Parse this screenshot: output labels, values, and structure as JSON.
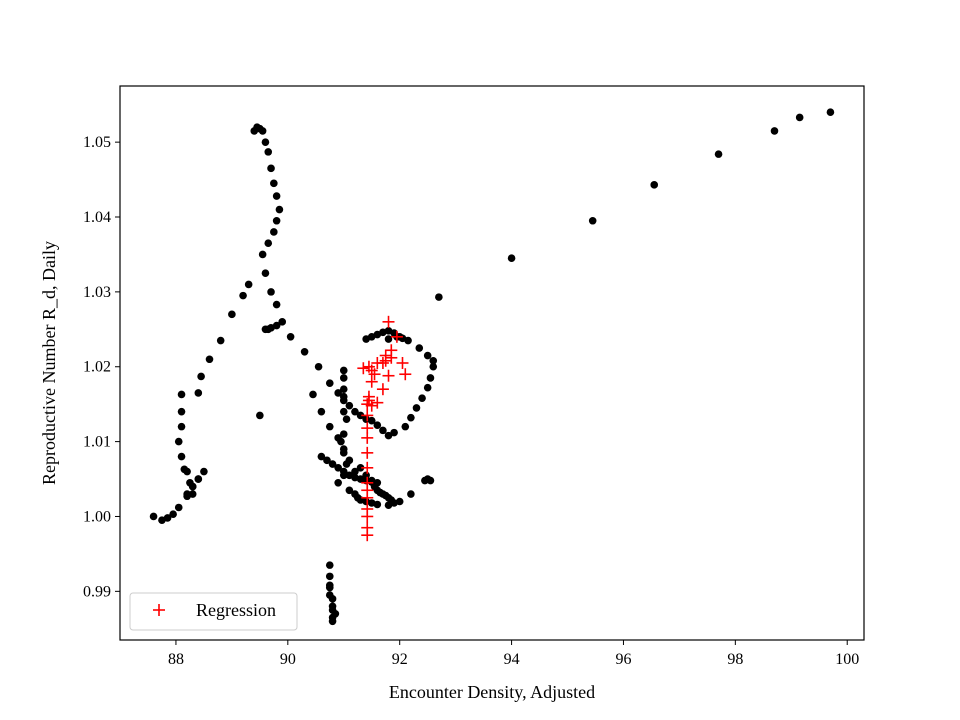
{
  "chart_data": {
    "type": "scatter",
    "title": "",
    "xlabel": "Encounter Density, Adjusted",
    "ylabel": "Reproductive Number R_d, Daily",
    "xlim": [
      87.0,
      100.3
    ],
    "ylim": [
      0.9835,
      1.0575
    ],
    "xticks": [
      88,
      90,
      92,
      94,
      96,
      98,
      100
    ],
    "yticks": [
      0.99,
      1.0,
      1.01,
      1.02,
      1.03,
      1.04,
      1.05
    ],
    "ytick_labels": [
      "0.99",
      "1.00",
      "1.01",
      "1.02",
      "1.03",
      "1.04",
      "1.05"
    ],
    "grid": false,
    "legend": {
      "position": "lower-left",
      "entries": [
        "Regression"
      ]
    },
    "colors": {
      "data": "#000000",
      "regression": "#ff0000"
    },
    "series": [
      {
        "marker": "dot",
        "color": "#000000",
        "x": [
          99.7,
          99.15,
          98.7,
          97.7,
          96.55,
          95.45,
          94.0,
          92.7,
          91.8,
          91.95,
          92.05,
          92.15,
          92.35,
          92.5,
          92.6,
          92.6,
          92.55,
          92.5,
          92.4,
          92.3,
          92.2,
          92.1,
          91.9,
          91.8,
          91.7,
          91.6,
          91.5,
          91.4,
          91.3,
          91.2,
          91.1,
          91.0,
          90.9,
          90.75,
          90.55,
          90.3,
          90.05,
          89.9,
          89.8,
          89.7,
          89.6,
          89.55,
          89.65,
          89.75,
          89.8,
          89.85,
          89.8,
          89.75,
          89.7,
          89.65,
          89.6,
          89.55,
          89.5,
          89.45,
          89.4,
          89.3,
          89.2,
          89.0,
          88.8,
          88.6,
          88.45,
          88.4,
          88.1,
          88.1,
          88.1,
          88.05,
          88.1,
          88.15,
          88.2,
          88.25,
          88.3,
          87.6,
          87.75,
          87.85,
          87.95,
          88.05,
          88.2,
          88.3,
          88.4,
          88.5,
          88.4,
          88.3,
          88.2,
          89.5,
          89.6,
          89.7,
          89.8,
          89.65,
          91.0,
          91.0,
          91.0,
          91.0,
          91.0,
          91.05,
          91.0,
          90.95,
          91.0,
          91.05,
          91.0,
          90.9,
          90.75,
          90.75,
          90.75,
          90.8,
          90.8,
          90.85,
          90.8,
          90.8,
          90.8,
          90.75,
          90.75,
          91.1,
          91.2,
          91.25,
          91.3,
          91.4,
          91.5,
          91.6,
          91.8,
          91.9,
          92.0,
          92.2,
          92.45,
          92.5,
          92.55,
          91.4,
          91.5,
          91.6,
          91.7,
          91.8,
          91.9,
          92.0,
          91.3,
          91.4,
          91.5,
          91.55,
          91.6,
          91.65,
          91.7,
          91.75,
          91.8,
          91.85,
          90.6,
          90.7,
          90.8,
          90.9,
          91.0,
          91.1,
          91.2,
          91.3,
          91.4,
          91.5,
          91.6,
          90.45,
          90.6,
          90.75,
          90.9,
          91.0,
          91.1,
          91.2
        ],
        "y": [
          1.054,
          1.0533,
          1.0515,
          1.0484,
          1.0443,
          1.0395,
          1.0345,
          1.0293,
          1.0237,
          1.024,
          1.0238,
          1.0235,
          1.0225,
          1.0215,
          1.0208,
          1.02,
          1.0185,
          1.0172,
          1.0158,
          1.0145,
          1.0132,
          1.012,
          1.0112,
          1.0108,
          1.0115,
          1.0122,
          1.0128,
          1.013,
          1.0135,
          1.014,
          1.0148,
          1.0155,
          1.0165,
          1.0178,
          1.02,
          1.022,
          1.024,
          1.026,
          1.0283,
          1.03,
          1.0325,
          1.035,
          1.0365,
          1.038,
          1.0395,
          1.041,
          1.0428,
          1.0445,
          1.0465,
          1.0487,
          1.05,
          1.0515,
          1.0518,
          1.052,
          1.0515,
          1.031,
          1.0295,
          1.027,
          1.0235,
          1.021,
          1.0187,
          1.0165,
          1.0163,
          1.014,
          1.012,
          1.01,
          1.008,
          1.0063,
          1.006,
          1.0045,
          1.004,
          1.0,
          0.9995,
          0.9998,
          1.0003,
          1.0012,
          1.0027,
          1.003,
          1.005,
          1.006,
          1.005,
          1.004,
          1.003,
          1.0135,
          1.025,
          1.0252,
          1.0255,
          1.025,
          1.0195,
          1.0185,
          1.017,
          1.016,
          1.014,
          1.013,
          1.011,
          1.01,
          1.0085,
          1.007,
          1.0055,
          1.0045,
          0.9935,
          0.992,
          0.9905,
          0.989,
          0.988,
          0.987,
          0.9865,
          0.986,
          0.9875,
          0.9895,
          0.9908,
          1.0035,
          1.003,
          1.0025,
          1.0022,
          1.002,
          1.0018,
          1.0016,
          1.0015,
          1.0018,
          1.002,
          1.003,
          1.0048,
          1.005,
          1.0048,
          1.0237,
          1.024,
          1.0243,
          1.0246,
          1.0248,
          1.0245,
          1.024,
          1.0065,
          1.0055,
          1.0048,
          1.004,
          1.0035,
          1.0032,
          1.003,
          1.0028,
          1.0025,
          1.0022,
          1.008,
          1.0075,
          1.007,
          1.0065,
          1.006,
          1.0055,
          1.0052,
          1.005,
          1.0048,
          1.0046,
          1.0045,
          1.0163,
          1.014,
          1.012,
          1.0105,
          1.009,
          1.0075,
          1.006
        ]
      },
      {
        "name": "Regression",
        "marker": "plus",
        "color": "#ff0000",
        "x": [
          91.8,
          91.95,
          91.85,
          92.05,
          91.75,
          91.6,
          91.5,
          91.45,
          91.35,
          91.7,
          91.55,
          91.5,
          91.45,
          91.42,
          91.42,
          91.42,
          91.42,
          91.42,
          91.42,
          91.42,
          91.42,
          91.42,
          91.42,
          91.42,
          91.42,
          91.42,
          91.45,
          91.5,
          91.6,
          91.7,
          91.8,
          92.1,
          91.75,
          91.85
        ],
        "y": [
          1.026,
          1.024,
          1.0222,
          1.0205,
          1.0215,
          1.0205,
          1.0195,
          1.02,
          1.0198,
          1.0205,
          1.019,
          1.018,
          1.0155,
          1.015,
          1.0135,
          1.0118,
          1.0105,
          1.0085,
          1.0065,
          1.0045,
          1.0035,
          1.0025,
          1.001,
          1.0,
          0.9985,
          0.9975,
          1.016,
          1.0148,
          1.0152,
          1.017,
          1.0188,
          1.019,
          1.0208,
          1.0212
        ]
      }
    ]
  }
}
